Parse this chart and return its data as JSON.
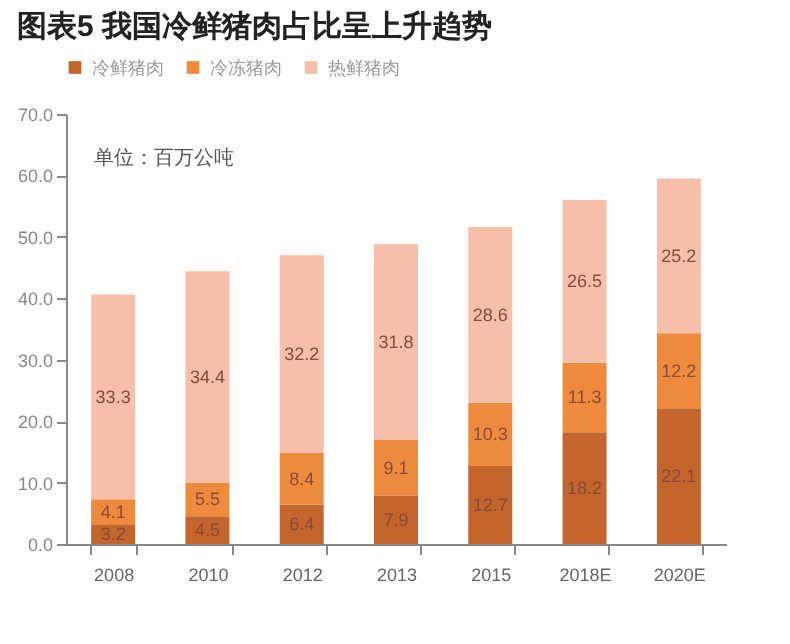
{
  "chart_data": {
    "type": "bar",
    "title": "图表5    我国冷鲜猪肉占比呈上升趋势",
    "stacked": true,
    "data_labels": true,
    "legend": "top",
    "grid": false,
    "categories": [
      "2008",
      "2010",
      "2012",
      "2013",
      "2015",
      "2018E",
      "2020E"
    ],
    "series": [
      {
        "name": "冷鲜猪肉",
        "color": "#c4652e",
        "values": [
          3.2,
          4.5,
          6.4,
          7.9,
          12.7,
          18.2,
          22.1
        ]
      },
      {
        "name": "冷冻猪肉",
        "color": "#ee8a3e",
        "values": [
          4.1,
          5.5,
          8.4,
          9.1,
          10.3,
          11.3,
          12.2
        ]
      },
      {
        "name": "热鲜猪肉",
        "color": "#f6bfa9",
        "values": [
          33.3,
          34.4,
          32.2,
          31.8,
          28.6,
          26.5,
          25.2
        ]
      }
    ],
    "ylim": [
      0,
      70
    ],
    "yticks": [
      {
        "value": 0,
        "label": "0.0"
      },
      {
        "value": 10,
        "label": "10.0"
      },
      {
        "value": 20,
        "label": "20.0"
      },
      {
        "value": 30,
        "label": "30.0"
      },
      {
        "value": 40,
        "label": "40.0"
      },
      {
        "value": 50,
        "label": "50.0"
      },
      {
        "value": 60,
        "label": "60.0"
      },
      {
        "value": 70,
        "label": "70.0"
      }
    ],
    "annotations": [
      "单位：百万公吨"
    ]
  }
}
